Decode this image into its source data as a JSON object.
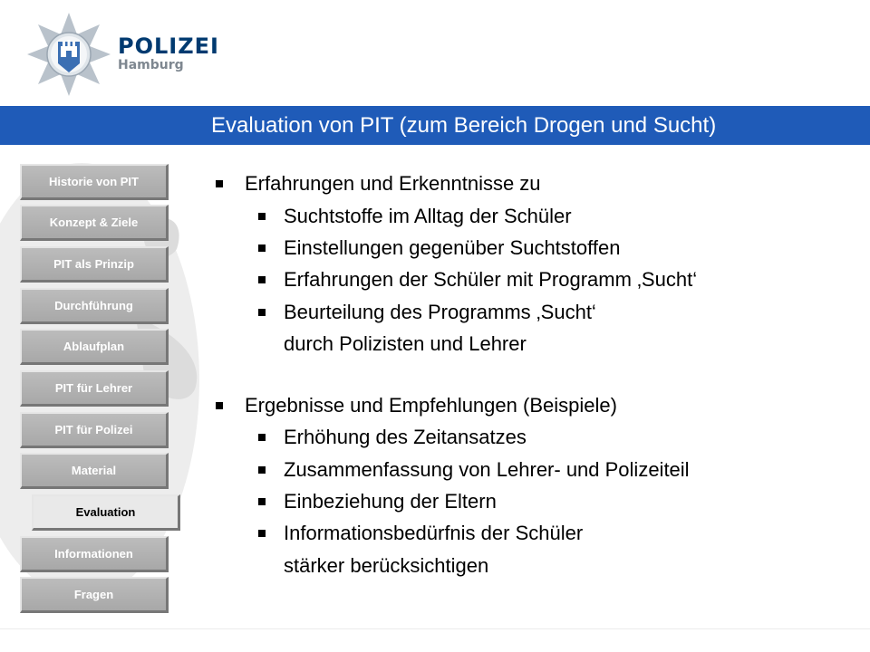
{
  "brand": {
    "name": "POLIZEI",
    "city": "Hamburg",
    "emblem_icon": "police-star-emblem",
    "accent_color": "#1f5bb8",
    "text_color": "#003a70"
  },
  "title": "Evaluation von PIT (zum Bereich Drogen und Sucht)",
  "nav": {
    "items": [
      {
        "label": "Historie von PIT"
      },
      {
        "label": "Konzept & Ziele"
      },
      {
        "label": "PIT als Prinzip"
      },
      {
        "label": "Durchführung"
      },
      {
        "label": "Ablaufplan"
      },
      {
        "label": "PIT für Lehrer"
      },
      {
        "label": "PIT für Polizei"
      },
      {
        "label": "Material"
      },
      {
        "label": "Evaluation",
        "active": true
      },
      {
        "label": "Informationen"
      },
      {
        "label": "Fragen"
      }
    ]
  },
  "content": {
    "sections": [
      {
        "heading": "Erfahrungen und Erkenntnisse zu",
        "bullets": [
          {
            "lines": [
              "Suchtstoffe im Alltag der Schüler"
            ]
          },
          {
            "lines": [
              "Einstellungen gegenüber Suchtstoffen"
            ]
          },
          {
            "lines": [
              "Erfahrungen der Schüler mit Programm ‚Sucht‘"
            ]
          },
          {
            "lines": [
              "Beurteilung des Programms ‚Sucht‘",
              "durch Polizisten und Lehrer"
            ]
          }
        ]
      },
      {
        "heading": "Ergebnisse und Empfehlungen (Beispiele)",
        "bullets": [
          {
            "lines": [
              "Erhöhung des Zeitansatzes"
            ]
          },
          {
            "lines": [
              "Zusammenfassung von Lehrer- und Polizeiteil"
            ]
          },
          {
            "lines": [
              "Einbeziehung der Eltern"
            ]
          },
          {
            "lines": [
              "Informationsbedürfnis der Schüler",
              "stärker berücksichtigen"
            ]
          }
        ]
      }
    ]
  }
}
